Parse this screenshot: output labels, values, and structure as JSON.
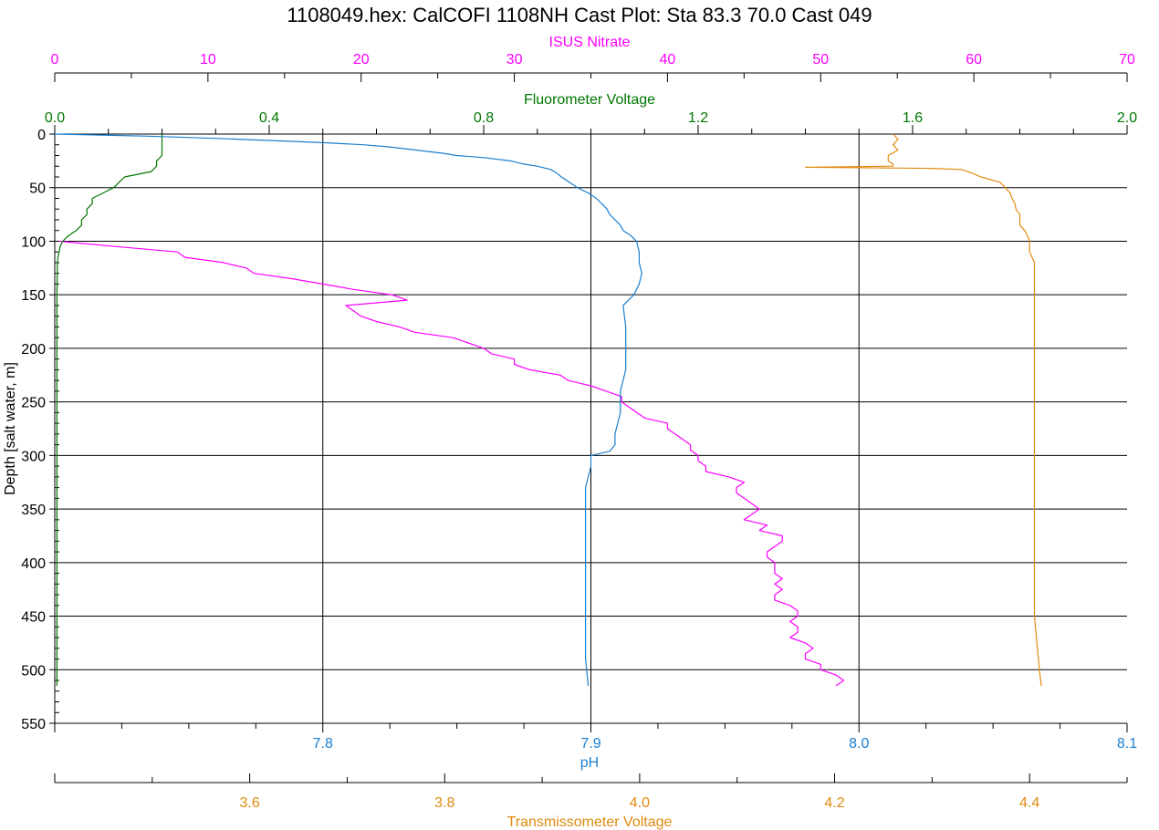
{
  "chart_data": {
    "type": "line",
    "title": "1108049.hex: CalCOFI 1108NH Cast Plot: Sta 83.3  70.0  Cast 049",
    "y_axis": {
      "label": "Depth [salt water, m]",
      "range": [
        0,
        550
      ],
      "inverted": true,
      "ticks": [
        "0",
        "50",
        "100",
        "150",
        "200",
        "250",
        "300",
        "350",
        "400",
        "450",
        "500",
        "550"
      ]
    },
    "grid": true,
    "axes": [
      {
        "id": "nitrate",
        "position": "top-outer",
        "label": "ISUS Nitrate",
        "color": "#ff00ff",
        "range": [
          0,
          70
        ],
        "ticks": [
          "0",
          "10",
          "20",
          "30",
          "40",
          "50",
          "60",
          "70"
        ]
      },
      {
        "id": "fluor",
        "position": "top-inner",
        "label": "Fluorometer Voltage",
        "color": "#007700",
        "range": [
          0,
          2.0
        ],
        "ticks": [
          "0.0",
          "0.4",
          "0.8",
          "1.2",
          "1.6",
          "2.0"
        ]
      },
      {
        "id": "ph",
        "position": "bottom-inner",
        "label": "pH",
        "color": "#1a7fd0",
        "range": [
          7.7,
          8.1
        ],
        "ticks": [
          "7.8",
          "7.9",
          "8.0",
          "8.1"
        ]
      },
      {
        "id": "trans",
        "position": "bottom-outer",
        "label": "Transmissometer Voltage",
        "color": "#e08a10",
        "range": [
          3.4,
          4.5
        ],
        "ticks": [
          "3.6",
          "3.8",
          "4.0",
          "4.2",
          "4.4"
        ]
      }
    ],
    "series": [
      {
        "name": "ISUS Nitrate",
        "axis": "nitrate",
        "color": "#ff00ff",
        "points": [
          [
            100,
            0.3
          ],
          [
            105,
            4
          ],
          [
            110,
            8
          ],
          [
            115,
            8.5
          ],
          [
            120,
            11
          ],
          [
            125,
            12.5
          ],
          [
            130,
            13
          ],
          [
            135,
            15.5
          ],
          [
            140,
            17.5
          ],
          [
            145,
            19.5
          ],
          [
            150,
            22
          ],
          [
            155,
            23
          ],
          [
            160,
            19
          ],
          [
            165,
            19.5
          ],
          [
            170,
            20
          ],
          [
            175,
            21
          ],
          [
            180,
            22.5
          ],
          [
            185,
            23.5
          ],
          [
            190,
            26
          ],
          [
            195,
            27
          ],
          [
            200,
            28
          ],
          [
            205,
            28.5
          ],
          [
            210,
            30
          ],
          [
            215,
            30
          ],
          [
            220,
            31
          ],
          [
            225,
            33
          ],
          [
            230,
            33.5
          ],
          [
            235,
            35
          ],
          [
            240,
            36
          ],
          [
            245,
            37
          ],
          [
            250,
            37
          ],
          [
            255,
            37.5
          ],
          [
            260,
            38
          ],
          [
            265,
            38.5
          ],
          [
            270,
            40
          ],
          [
            275,
            40
          ],
          [
            280,
            40.5
          ],
          [
            285,
            41
          ],
          [
            290,
            41.5
          ],
          [
            295,
            41.5
          ],
          [
            300,
            42
          ],
          [
            305,
            42
          ],
          [
            310,
            42.5
          ],
          [
            315,
            42.5
          ],
          [
            320,
            44
          ],
          [
            325,
            45
          ],
          [
            330,
            44.5
          ],
          [
            335,
            44.5
          ],
          [
            340,
            45
          ],
          [
            345,
            45.5
          ],
          [
            350,
            46
          ],
          [
            355,
            45.5
          ],
          [
            360,
            45
          ],
          [
            365,
            46.5
          ],
          [
            370,
            46
          ],
          [
            375,
            47.5
          ],
          [
            380,
            47.5
          ],
          [
            385,
            47
          ],
          [
            390,
            46.5
          ],
          [
            395,
            46.5
          ],
          [
            400,
            47
          ],
          [
            405,
            47
          ],
          [
            410,
            47
          ],
          [
            415,
            47.5
          ],
          [
            420,
            47
          ],
          [
            425,
            47.5
          ],
          [
            430,
            47
          ],
          [
            435,
            47
          ],
          [
            440,
            48
          ],
          [
            445,
            48.5
          ],
          [
            450,
            48.5
          ],
          [
            455,
            48
          ],
          [
            460,
            48.5
          ],
          [
            465,
            48.5
          ],
          [
            470,
            48
          ],
          [
            475,
            49
          ],
          [
            480,
            49.5
          ],
          [
            485,
            49
          ],
          [
            490,
            49
          ],
          [
            495,
            50
          ],
          [
            500,
            50
          ],
          [
            505,
            51
          ],
          [
            510,
            51.5
          ],
          [
            515,
            51
          ]
        ]
      },
      {
        "name": "Fluorometer Voltage",
        "axis": "fluor",
        "color": "#007700",
        "points": [
          [
            0,
            0.2
          ],
          [
            5,
            0.2
          ],
          [
            10,
            0.2
          ],
          [
            15,
            0.2
          ],
          [
            20,
            0.2
          ],
          [
            25,
            0.19
          ],
          [
            30,
            0.19
          ],
          [
            35,
            0.18
          ],
          [
            40,
            0.13
          ],
          [
            45,
            0.12
          ],
          [
            50,
            0.11
          ],
          [
            55,
            0.09
          ],
          [
            60,
            0.07
          ],
          [
            65,
            0.07
          ],
          [
            70,
            0.06
          ],
          [
            75,
            0.06
          ],
          [
            80,
            0.05
          ],
          [
            85,
            0.05
          ],
          [
            90,
            0.04
          ],
          [
            95,
            0.025
          ],
          [
            100,
            0.015
          ],
          [
            105,
            0.01
          ],
          [
            110,
            0.008
          ],
          [
            115,
            0.006
          ],
          [
            120,
            0.005
          ],
          [
            150,
            0.004
          ],
          [
            200,
            0.004
          ],
          [
            250,
            0.004
          ],
          [
            300,
            0.004
          ],
          [
            350,
            0.004
          ],
          [
            400,
            0.004
          ],
          [
            450,
            0.004
          ],
          [
            500,
            0.004
          ],
          [
            515,
            0.004
          ]
        ]
      },
      {
        "name": "pH",
        "axis": "ph",
        "color": "#1a7fd0",
        "points": [
          [
            0,
            7.7
          ],
          [
            2,
            7.735
          ],
          [
            4,
            7.76
          ],
          [
            6,
            7.78
          ],
          [
            8,
            7.8
          ],
          [
            10,
            7.815
          ],
          [
            12,
            7.825
          ],
          [
            15,
            7.835
          ],
          [
            18,
            7.845
          ],
          [
            20,
            7.85
          ],
          [
            22,
            7.86
          ],
          [
            25,
            7.87
          ],
          [
            28,
            7.875
          ],
          [
            30,
            7.88
          ],
          [
            33,
            7.885
          ],
          [
            36,
            7.887
          ],
          [
            40,
            7.889
          ],
          [
            45,
            7.892
          ],
          [
            50,
            7.895
          ],
          [
            55,
            7.899
          ],
          [
            60,
            7.902
          ],
          [
            65,
            7.904
          ],
          [
            70,
            7.906
          ],
          [
            75,
            7.907
          ],
          [
            80,
            7.909
          ],
          [
            85,
            7.911
          ],
          [
            90,
            7.912
          ],
          [
            95,
            7.915
          ],
          [
            100,
            7.917
          ],
          [
            110,
            7.918
          ],
          [
            120,
            7.918
          ],
          [
            130,
            7.919
          ],
          [
            140,
            7.918
          ],
          [
            150,
            7.916
          ],
          [
            160,
            7.912
          ],
          [
            180,
            7.913
          ],
          [
            200,
            7.913
          ],
          [
            220,
            7.913
          ],
          [
            240,
            7.911
          ],
          [
            260,
            7.911
          ],
          [
            280,
            7.909
          ],
          [
            290,
            7.909
          ],
          [
            296,
            7.907
          ],
          [
            300,
            7.9
          ],
          [
            310,
            7.9
          ],
          [
            330,
            7.898
          ],
          [
            350,
            7.898
          ],
          [
            380,
            7.898
          ],
          [
            400,
            7.898
          ],
          [
            430,
            7.898
          ],
          [
            460,
            7.898
          ],
          [
            490,
            7.898
          ],
          [
            515,
            7.899
          ]
        ]
      },
      {
        "name": "Transmissometer Voltage",
        "axis": "trans",
        "color": "#e08a10",
        "points": [
          [
            0,
            4.26
          ],
          [
            5,
            4.265
          ],
          [
            10,
            4.26
          ],
          [
            15,
            4.265
          ],
          [
            20,
            4.255
          ],
          [
            25,
            4.255
          ],
          [
            28,
            4.26
          ],
          [
            30,
            4.26
          ],
          [
            31,
            4.17
          ],
          [
            32,
            4.3
          ],
          [
            33,
            4.33
          ],
          [
            36,
            4.34
          ],
          [
            40,
            4.35
          ],
          [
            45,
            4.37
          ],
          [
            50,
            4.375
          ],
          [
            55,
            4.38
          ],
          [
            60,
            4.382
          ],
          [
            65,
            4.385
          ],
          [
            70,
            4.386
          ],
          [
            75,
            4.39
          ],
          [
            80,
            4.39
          ],
          [
            85,
            4.39
          ],
          [
            90,
            4.395
          ],
          [
            95,
            4.398
          ],
          [
            100,
            4.4
          ],
          [
            110,
            4.4
          ],
          [
            120,
            4.405
          ],
          [
            140,
            4.405
          ],
          [
            160,
            4.405
          ],
          [
            200,
            4.405
          ],
          [
            250,
            4.405
          ],
          [
            300,
            4.405
          ],
          [
            350,
            4.405
          ],
          [
            400,
            4.405
          ],
          [
            450,
            4.405
          ],
          [
            500,
            4.41
          ],
          [
            515,
            4.412
          ]
        ]
      }
    ]
  }
}
